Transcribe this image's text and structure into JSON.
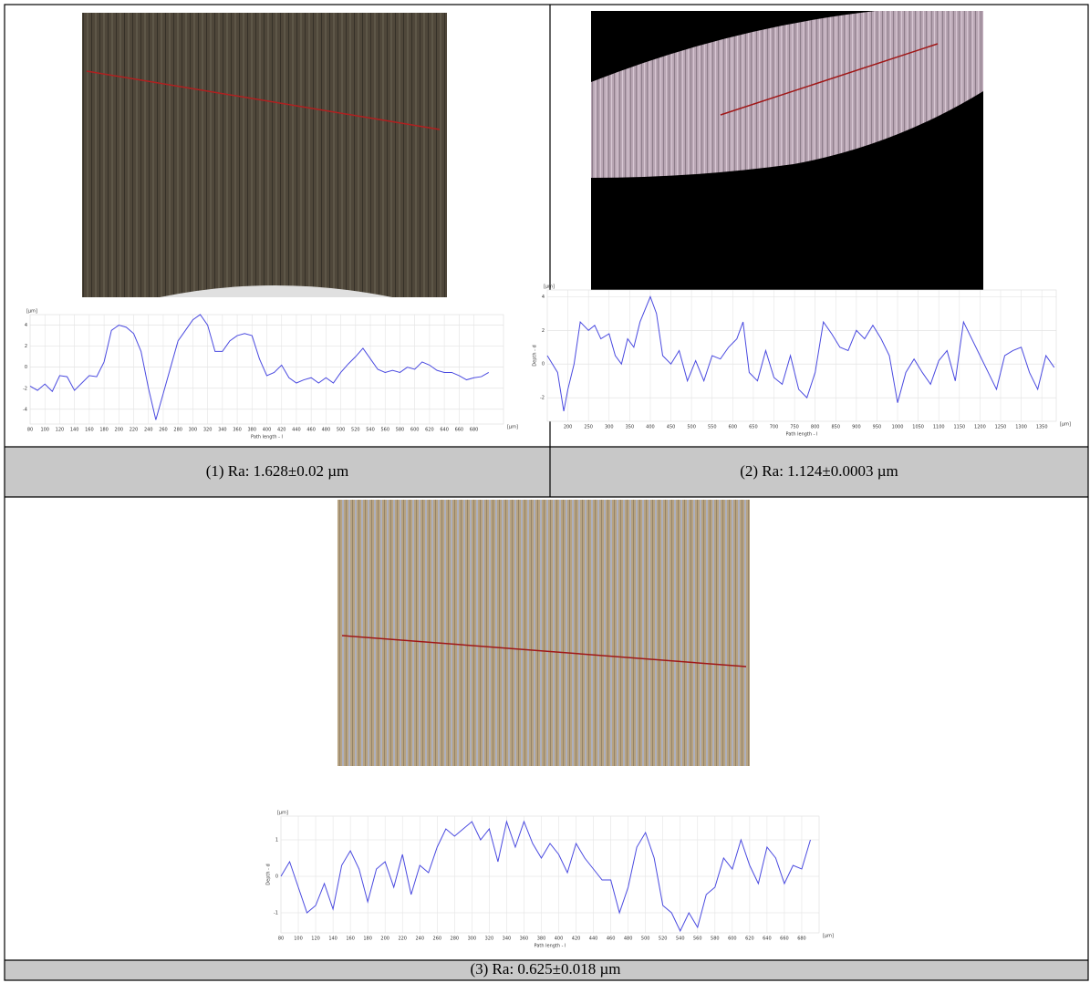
{
  "captions": [
    "(1) Ra: 1.628±0.02 µm",
    "(2) Ra: 1.124±0.0003 µm",
    "(3) Ra: 0.625±0.018 µm"
  ],
  "chart_data": [
    {
      "type": "line",
      "color": "#4a4ae0",
      "grid": true,
      "y_unit": "[µm]",
      "x_unit": "[µm]",
      "xlabel": "Path length - l",
      "x": [
        80,
        90,
        100,
        110,
        120,
        130,
        140,
        150,
        160,
        170,
        180,
        190,
        200,
        210,
        220,
        230,
        240,
        250,
        260,
        270,
        280,
        290,
        300,
        310,
        320,
        330,
        340,
        350,
        360,
        370,
        380,
        390,
        400,
        410,
        420,
        430,
        440,
        450,
        460,
        470,
        480,
        490,
        500,
        510,
        520,
        530,
        540,
        550,
        560,
        570,
        580,
        590,
        600,
        610,
        620,
        630,
        640,
        650,
        660,
        670,
        680,
        690,
        700
      ],
      "values": [
        -1.8,
        -2.2,
        -1.6,
        -2.3,
        -0.8,
        -0.9,
        -2.2,
        -1.5,
        -0.8,
        -0.9,
        0.5,
        3.5,
        4.0,
        3.8,
        3.2,
        1.5,
        -2.0,
        -5.0,
        -2.5,
        0,
        2.5,
        3.5,
        4.5,
        5.0,
        4.0,
        1.5,
        1.5,
        2.5,
        3.0,
        3.2,
        3.0,
        0.8,
        -0.8,
        -0.5,
        0.2,
        -1.0,
        -1.5,
        -1.2,
        -1.0,
        -1.5,
        -1.0,
        -1.5,
        -0.5,
        0.3,
        1.0,
        1.8,
        0.8,
        -0.2,
        -0.5,
        -0.3,
        -0.5,
        0,
        -0.2,
        0.5,
        0.2,
        -0.3,
        -0.5,
        -0.5,
        -0.8,
        -1.2,
        -1.0,
        -0.9,
        -0.5
      ],
      "xlim": [
        80,
        720
      ],
      "ylim": [
        -5.4,
        5.0
      ],
      "xticks": [
        80,
        100,
        120,
        140,
        160,
        180,
        200,
        220,
        240,
        260,
        280,
        300,
        320,
        340,
        360,
        380,
        400,
        420,
        440,
        460,
        480,
        500,
        520,
        540,
        560,
        580,
        600,
        620,
        640,
        660,
        680
      ],
      "yticks": [
        4,
        2,
        0,
        -2,
        -4
      ]
    },
    {
      "type": "line",
      "color": "#4a4ae0",
      "grid": true,
      "y_unit": "[µm]",
      "x_unit": "[µm]",
      "xlabel": "Path length - l",
      "ylabel": "Depth - d",
      "x": [
        150,
        175,
        190,
        200,
        215,
        230,
        250,
        265,
        280,
        300,
        315,
        330,
        345,
        360,
        375,
        400,
        415,
        430,
        450,
        470,
        490,
        510,
        530,
        550,
        570,
        590,
        610,
        625,
        640,
        660,
        680,
        700,
        720,
        740,
        760,
        780,
        800,
        820,
        840,
        860,
        880,
        900,
        920,
        940,
        960,
        980,
        1000,
        1020,
        1040,
        1060,
        1080,
        1100,
        1120,
        1140,
        1160,
        1180,
        1200,
        1220,
        1240,
        1260,
        1280,
        1300,
        1320,
        1340,
        1360,
        1380
      ],
      "values": [
        0.5,
        -0.5,
        -2.8,
        -1.5,
        0,
        2.5,
        2.0,
        2.3,
        1.5,
        1.8,
        0.5,
        0,
        1.5,
        1.0,
        2.5,
        4.0,
        3.0,
        0.5,
        0,
        0.8,
        -1.0,
        0.2,
        -1.0,
        0.5,
        0.3,
        1.0,
        1.5,
        2.5,
        -0.5,
        -1.0,
        0.8,
        -0.8,
        -1.2,
        0.5,
        -1.5,
        -2.0,
        -0.5,
        2.5,
        1.8,
        1.0,
        0.8,
        2.0,
        1.5,
        2.3,
        1.5,
        0.5,
        -2.3,
        -0.5,
        0.3,
        -0.5,
        -1.2,
        0.2,
        0.8,
        -1.0,
        2.5,
        1.5,
        0.5,
        -0.5,
        -1.5,
        0.5,
        0.8,
        1.0,
        -0.5,
        -1.5,
        0.5,
        -0.2
      ],
      "xlim": [
        150,
        1385
      ],
      "ylim": [
        -3.4,
        4.4
      ],
      "xticks": [
        200,
        250,
        300,
        350,
        400,
        450,
        500,
        550,
        600,
        650,
        700,
        750,
        800,
        850,
        900,
        950,
        1000,
        1050,
        1100,
        1150,
        1200,
        1250,
        1300,
        1350
      ],
      "yticks": [
        4,
        2,
        0,
        -2
      ]
    },
    {
      "type": "line",
      "color": "#4a4ae0",
      "grid": true,
      "y_unit": "[µm]",
      "x_unit": "[µm]",
      "xlabel": "Path length - l",
      "ylabel": "Depth - d",
      "x": [
        80,
        90,
        100,
        110,
        120,
        130,
        140,
        150,
        160,
        170,
        180,
        190,
        200,
        210,
        220,
        230,
        240,
        250,
        260,
        270,
        280,
        290,
        300,
        310,
        320,
        330,
        340,
        350,
        360,
        370,
        380,
        390,
        400,
        410,
        420,
        430,
        440,
        450,
        460,
        470,
        480,
        490,
        500,
        510,
        520,
        530,
        540,
        550,
        560,
        570,
        580,
        590,
        600,
        610,
        620,
        630,
        640,
        650,
        660,
        670,
        680,
        690
      ],
      "values": [
        0,
        0.4,
        -0.3,
        -1.0,
        -0.8,
        -0.2,
        -0.9,
        0.3,
        0.7,
        0.2,
        -0.7,
        0.2,
        0.4,
        -0.3,
        0.6,
        -0.5,
        0.3,
        0.1,
        0.8,
        1.3,
        1.1,
        1.3,
        1.5,
        1.0,
        1.3,
        0.4,
        1.5,
        0.8,
        1.5,
        0.9,
        0.5,
        0.9,
        0.6,
        0.1,
        0.9,
        0.5,
        0.2,
        -0.1,
        -0.1,
        -1.0,
        -0.3,
        0.8,
        1.2,
        0.5,
        -0.8,
        -1.0,
        -1.5,
        -1.0,
        -1.4,
        -0.5,
        -0.3,
        0.5,
        0.2,
        1.0,
        0.3,
        -0.2,
        0.8,
        0.5,
        -0.2,
        0.3,
        0.2,
        1.0
      ],
      "xlim": [
        80,
        700
      ],
      "ylim": [
        -1.55,
        1.65
      ],
      "xticks": [
        80,
        100,
        120,
        140,
        160,
        180,
        200,
        220,
        240,
        260,
        280,
        300,
        320,
        340,
        360,
        380,
        400,
        420,
        440,
        460,
        480,
        500,
        520,
        540,
        560,
        580,
        600,
        620,
        640,
        660,
        680
      ],
      "yticks": [
        1,
        0,
        -1
      ]
    }
  ]
}
